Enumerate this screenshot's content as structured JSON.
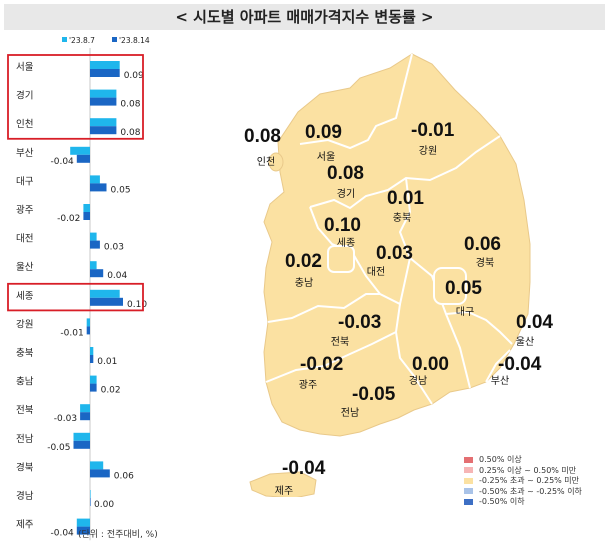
{
  "title": "< 시도별 아파트 매매가격지수 변동률 >",
  "colors": {
    "prev": "#1fb6ec",
    "curr": "#1a66c4",
    "highlight_box": "#d81e27",
    "map_fill": "#fbe1a2",
    "map_stroke": "#ffffff"
  },
  "chart_data": {
    "type": "bar",
    "orientation": "horizontal",
    "series": [
      {
        "name": "'23.8.7",
        "values": [
          0.09,
          0.08,
          0.08,
          -0.06,
          0.03,
          -0.02,
          0.02,
          0.02,
          0.09,
          -0.01,
          0.01,
          0.02,
          -0.03,
          -0.05,
          0.04,
          0.0,
          -0.04
        ]
      },
      {
        "name": "'23.8.14",
        "values": [
          0.09,
          0.08,
          0.08,
          -0.04,
          0.05,
          -0.02,
          0.03,
          0.04,
          0.1,
          -0.01,
          0.01,
          0.02,
          -0.03,
          -0.05,
          0.06,
          0.0,
          -0.04
        ]
      }
    ],
    "categories": [
      "서울",
      "경기",
      "인천",
      "부산",
      "대구",
      "광주",
      "대전",
      "울산",
      "세종",
      "강원",
      "충북",
      "충남",
      "전북",
      "전남",
      "경북",
      "경남",
      "제주"
    ],
    "value_labels": [
      "0.09",
      "0.08",
      "0.08",
      "-0.04",
      "0.05",
      "-0.02",
      "0.03",
      "0.04",
      "0.10",
      "-0.01",
      "0.01",
      "0.02",
      "-0.03",
      "-0.05",
      "0.06",
      "0.00",
      "-0.04"
    ],
    "highlighted": [
      "서울",
      "경기",
      "인천",
      "세종"
    ],
    "unit_note": "(단위 : 전주대비, %)"
  },
  "map": {
    "regions": [
      {
        "name": "인천",
        "value": "0.08"
      },
      {
        "name": "서울",
        "value": "0.09"
      },
      {
        "name": "강원",
        "value": "-0.01"
      },
      {
        "name": "경기",
        "value": "0.08"
      },
      {
        "name": "충북",
        "value": "0.01"
      },
      {
        "name": "세종",
        "value": "0.10"
      },
      {
        "name": "대전",
        "value": "0.03"
      },
      {
        "name": "충남",
        "value": "0.02"
      },
      {
        "name": "경북",
        "value": "0.06"
      },
      {
        "name": "대구",
        "value": "0.05"
      },
      {
        "name": "전북",
        "value": "-0.03"
      },
      {
        "name": "울산",
        "value": "0.04"
      },
      {
        "name": "광주",
        "value": "-0.02"
      },
      {
        "name": "경남",
        "value": "0.00"
      },
      {
        "name": "부산",
        "value": "-0.04"
      },
      {
        "name": "전남",
        "value": "-0.05"
      },
      {
        "name": "제주",
        "value": "-0.04"
      }
    ],
    "legend": [
      {
        "label": "0.50% 이상",
        "color": "#e46f72"
      },
      {
        "label": "0.25% 이상 ~ 0.50% 미만",
        "color": "#f6b5b5"
      },
      {
        "label": "-0.25% 초과 ~ 0.25% 미만",
        "color": "#fbe1a2"
      },
      {
        "label": "-0.50% 초과 ~ -0.25% 이하",
        "color": "#a9c3e8"
      },
      {
        "label": "-0.50% 이하",
        "color": "#3d6fc4"
      }
    ]
  }
}
